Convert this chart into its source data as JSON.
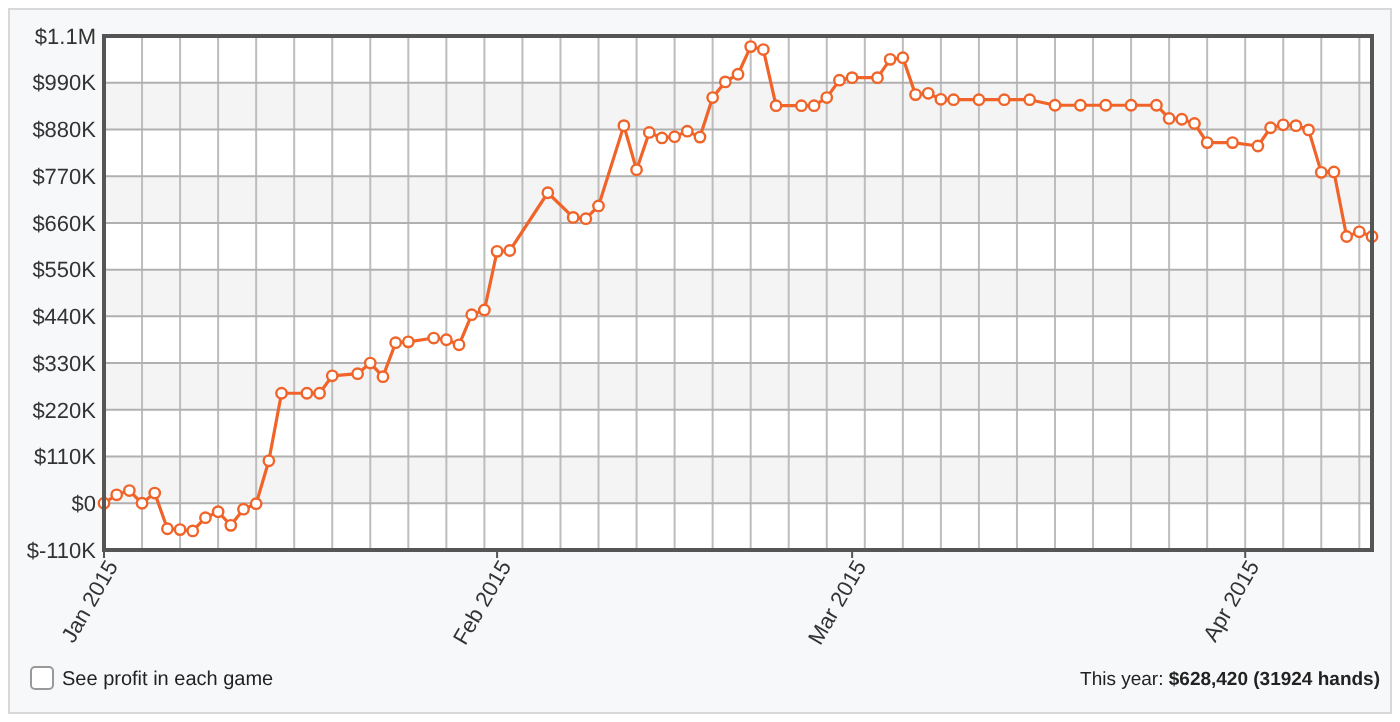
{
  "chart_data": {
    "type": "line",
    "x": [
      "2015-01-01",
      "2015-01-02",
      "2015-01-03",
      "2015-01-04",
      "2015-01-05",
      "2015-01-06",
      "2015-01-07",
      "2015-01-08",
      "2015-01-09",
      "2015-01-10",
      "2015-01-11",
      "2015-01-12",
      "2015-01-13",
      "2015-01-14",
      "2015-01-15",
      "2015-01-17",
      "2015-01-18",
      "2015-01-19",
      "2015-01-21",
      "2015-01-22",
      "2015-01-23",
      "2015-01-24",
      "2015-01-25",
      "2015-01-27",
      "2015-01-28",
      "2015-01-29",
      "2015-01-30",
      "2015-01-31",
      "2015-02-01",
      "2015-02-02",
      "2015-02-05",
      "2015-02-07",
      "2015-02-08",
      "2015-02-09",
      "2015-02-11",
      "2015-02-12",
      "2015-02-13",
      "2015-02-14",
      "2015-02-15",
      "2015-02-16",
      "2015-02-17",
      "2015-02-18",
      "2015-02-19",
      "2015-02-20",
      "2015-02-21",
      "2015-02-22",
      "2015-02-23",
      "2015-02-25",
      "2015-02-26",
      "2015-02-27",
      "2015-02-28",
      "2015-03-01",
      "2015-03-03",
      "2015-03-04",
      "2015-03-05",
      "2015-03-06",
      "2015-03-07",
      "2015-03-08",
      "2015-03-09",
      "2015-03-11",
      "2015-03-13",
      "2015-03-15",
      "2015-03-17",
      "2015-03-19",
      "2015-03-21",
      "2015-03-23",
      "2015-03-25",
      "2015-03-26",
      "2015-03-27",
      "2015-03-28",
      "2015-03-29",
      "2015-03-31",
      "2015-04-02",
      "2015-04-03",
      "2015-04-04",
      "2015-04-05",
      "2015-04-06",
      "2015-04-07",
      "2015-04-08",
      "2015-04-09",
      "2015-04-10",
      "2015-04-11"
    ],
    "series": [
      {
        "color": "#f0642a",
        "values": [
          0,
          20000,
          30000,
          0,
          24000,
          -60000,
          -62000,
          -65000,
          -34000,
          -20000,
          -52000,
          -14000,
          -1000,
          100000,
          259000,
          259000,
          259000,
          300000,
          305000,
          330000,
          298000,
          378000,
          380000,
          389000,
          385000,
          373000,
          444000,
          455000,
          593000,
          595000,
          731000,
          673000,
          670000,
          700000,
          889000,
          785000,
          873000,
          860000,
          863000,
          876000,
          862000,
          955000,
          992000,
          1010000,
          1075000,
          1068000,
          936000,
          936000,
          936000,
          955000,
          996000,
          1002000,
          1002000,
          1045000,
          1049000,
          962000,
          965000,
          951000,
          950000,
          950000,
          950000,
          950000,
          937000,
          937000,
          937000,
          937000,
          937000,
          906000,
          904000,
          894000,
          849000,
          849000,
          841000,
          884000,
          891000,
          889000,
          879000,
          779000,
          780000,
          628000,
          639000,
          628000
        ]
      }
    ],
    "xlim": [
      "2015-01-01",
      "2015-04-11"
    ],
    "xticks": [
      {
        "value": "2015-01-01",
        "label": "Jan 2015"
      },
      {
        "value": "2015-02-01",
        "label": "Feb 2015"
      },
      {
        "value": "2015-03-01",
        "label": "Mar 2015"
      },
      {
        "value": "2015-04-01",
        "label": "Apr 2015"
      }
    ],
    "ylim": [
      -110000,
      1100000
    ],
    "yticks": [
      {
        "value": -110000,
        "label": "$-110K"
      },
      {
        "value": 0,
        "label": "$0"
      },
      {
        "value": 110000,
        "label": "$110K"
      },
      {
        "value": 220000,
        "label": "$220K"
      },
      {
        "value": 330000,
        "label": "$330K"
      },
      {
        "value": 440000,
        "label": "$440K"
      },
      {
        "value": 550000,
        "label": "$550K"
      },
      {
        "value": 660000,
        "label": "$660K"
      },
      {
        "value": 770000,
        "label": "$770K"
      },
      {
        "value": 880000,
        "label": "$880K"
      },
      {
        "value": 990000,
        "label": "$990K"
      },
      {
        "value": 1100000,
        "label": "$1.1M"
      }
    ],
    "grid": true,
    "marker": "circle",
    "line_style": "solid",
    "annotations": [
      "See profit in each game",
      "This year: $628,420 (31924 hands)"
    ]
  }
}
